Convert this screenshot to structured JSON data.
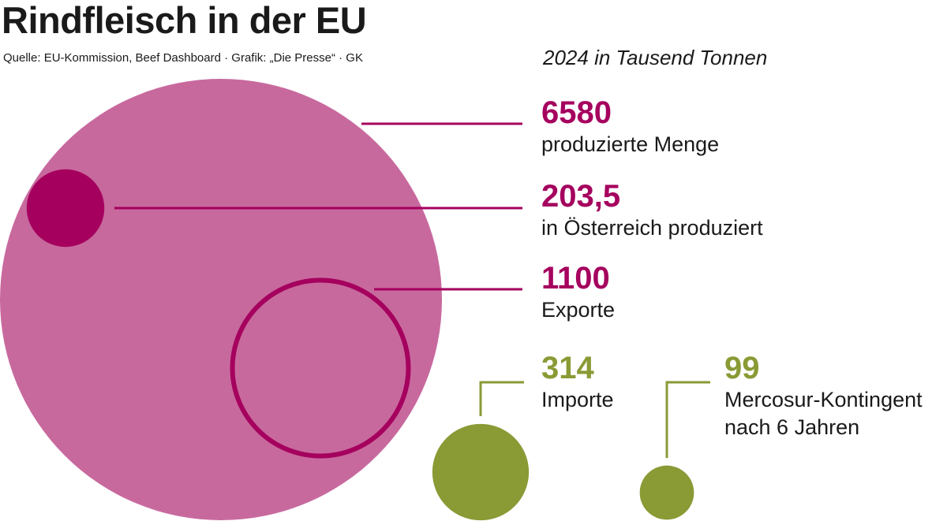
{
  "header": {
    "title": "Rindfleisch in der EU",
    "source": "Quelle: EU-Kommission, Beef Dashboard · Grafik: „Die Presse“ · GK",
    "unit_note": "2024 in Tausend Tonnen"
  },
  "colors": {
    "big_circle": "#c8699e",
    "magenta": "#a5005e",
    "green": "#8a9a35"
  },
  "chart_data": {
    "type": "bubble",
    "title": "Rindfleisch in der EU",
    "subtitle": "2024 in Tausend Tonnen",
    "unit": "Tausend Tonnen",
    "series": [
      {
        "name": "produzierte Menge",
        "value": 6580,
        "value_label": "6580",
        "style": "filled",
        "color": "#c8699e"
      },
      {
        "name": "in Österreich produziert",
        "value": 203.5,
        "value_label": "203,5",
        "style": "filled",
        "color": "#a5005e"
      },
      {
        "name": "Exporte",
        "value": 1100,
        "value_label": "1100",
        "style": "outline",
        "color": "#a5005e"
      },
      {
        "name": "Importe",
        "value": 314,
        "value_label": "314",
        "style": "filled",
        "color": "#8a9a35"
      },
      {
        "name": "Mercosur-Kontingent nach 6 Jahren",
        "value": 99,
        "value_label": "99",
        "style": "filled",
        "color": "#8a9a35",
        "caption_lines": [
          "Mercosur-Kontingent",
          "nach 6 Jahren"
        ]
      }
    ]
  }
}
